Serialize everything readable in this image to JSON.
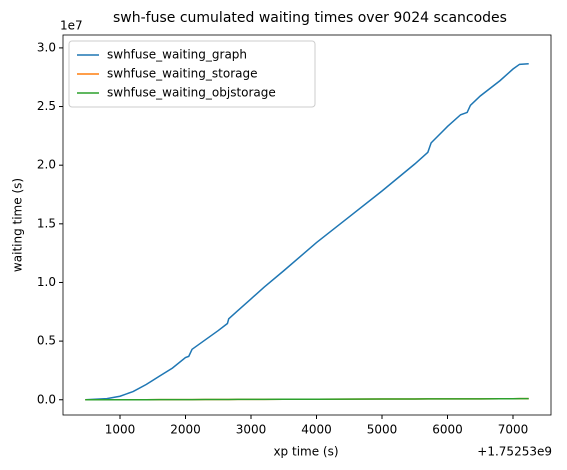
{
  "chart_data": {
    "type": "line",
    "title": "swh-fuse cumulated waiting times over 9024 scancodes",
    "x_label": "xp time (s)",
    "y_label": "waiting time (s)",
    "x_offset_text": "+1.75253e9",
    "y_offset_text": "1e7",
    "x": [
      470,
      800,
      1000,
      1200,
      1400,
      1600,
      1800,
      2000,
      2050,
      2100,
      2300,
      2500,
      2640,
      2660,
      2800,
      3000,
      3200,
      3500,
      4000,
      4500,
      5000,
      5500,
      5700,
      5750,
      6000,
      6200,
      6300,
      6350,
      6500,
      6800,
      7000,
      7100,
      7240
    ],
    "series": [
      {
        "name": "swhfuse_waiting_graph",
        "color": "#1f77b4",
        "values": [
          0,
          0.01,
          0.03,
          0.07,
          0.13,
          0.2,
          0.27,
          0.36,
          0.37,
          0.43,
          0.51,
          0.59,
          0.65,
          0.69,
          0.76,
          0.86,
          0.96,
          1.1,
          1.34,
          1.56,
          1.78,
          2.01,
          2.11,
          2.19,
          2.33,
          2.43,
          2.45,
          2.51,
          2.59,
          2.72,
          2.82,
          2.86,
          2.865
        ]
      },
      {
        "name": "swhfuse_waiting_storage",
        "color": "#ff7f0e",
        "values": [
          0,
          0,
          0,
          0,
          0,
          0.001,
          0.001,
          0.001,
          0.001,
          0.001,
          0.002,
          0.002,
          0.002,
          0.002,
          0.003,
          0.003,
          0.003,
          0.004,
          0.004,
          0.005,
          0.006,
          0.006,
          0.007,
          0.007,
          0.007,
          0.008,
          0.008,
          0.008,
          0.008,
          0.009,
          0.009,
          0.01,
          0.01
        ]
      },
      {
        "name": "swhfuse_waiting_objstorage",
        "color": "#2ca02c",
        "values": [
          0,
          0,
          0,
          0,
          0,
          0.001,
          0.001,
          0.001,
          0.001,
          0.001,
          0.002,
          0.002,
          0.002,
          0.002,
          0.003,
          0.003,
          0.003,
          0.004,
          0.004,
          0.005,
          0.006,
          0.006,
          0.007,
          0.007,
          0.007,
          0.008,
          0.008,
          0.008,
          0.008,
          0.009,
          0.009,
          0.01,
          0.01
        ]
      }
    ],
    "xlim": [
      130,
      7580
    ],
    "xticks": [
      1000,
      2000,
      3000,
      4000,
      5000,
      6000,
      7000
    ],
    "ylim": [
      -0.13,
      3.11
    ],
    "yticks": [
      {
        "value": 0,
        "label": "0.0"
      },
      {
        "value": 0.5,
        "label": "0.5"
      },
      {
        "value": 1,
        "label": "1.0"
      },
      {
        "value": 1.5,
        "label": "1.5"
      },
      {
        "value": 2,
        "label": "2.0"
      },
      {
        "value": 2.5,
        "label": "2.5"
      },
      {
        "value": 3,
        "label": "3.0"
      }
    ],
    "legend": "upper left"
  }
}
